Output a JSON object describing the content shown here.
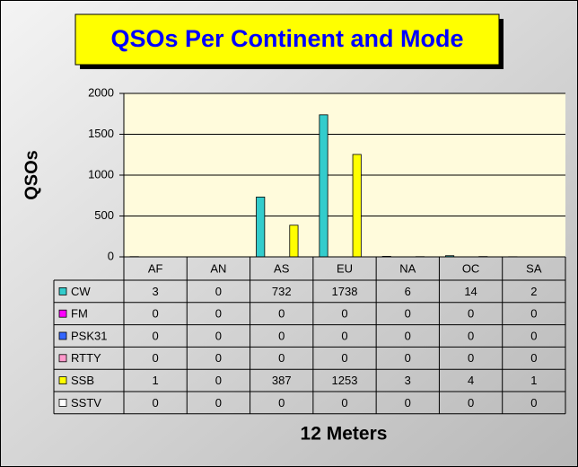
{
  "chart_data": {
    "type": "bar",
    "title": "QSOs Per Continent and Mode",
    "x_label": "12 Meters",
    "y_label": "QSOs",
    "categories": [
      "AF",
      "AN",
      "AS",
      "EU",
      "NA",
      "OC",
      "SA"
    ],
    "series": [
      {
        "name": "CW",
        "color": "#33cccc",
        "values": [
          3,
          0,
          732,
          1738,
          6,
          14,
          2
        ]
      },
      {
        "name": "FM",
        "color": "#ff00ff",
        "values": [
          0,
          0,
          0,
          0,
          0,
          0,
          0
        ]
      },
      {
        "name": "PSK31",
        "color": "#3366ff",
        "values": [
          0,
          0,
          0,
          0,
          0,
          0,
          0
        ]
      },
      {
        "name": "RTTY",
        "color": "#ff99cc",
        "values": [
          0,
          0,
          0,
          0,
          0,
          0,
          0
        ]
      },
      {
        "name": "SSB",
        "color": "#ffff00",
        "values": [
          1,
          0,
          387,
          1253,
          3,
          4,
          1
        ]
      },
      {
        "name": "SSTV",
        "color": "#ffffff",
        "values": [
          0,
          0,
          0,
          0,
          0,
          0,
          0
        ]
      }
    ],
    "ylim": [
      0,
      2000
    ],
    "yticks": [
      0,
      500,
      1000,
      1500,
      2000
    ],
    "grid": true
  }
}
